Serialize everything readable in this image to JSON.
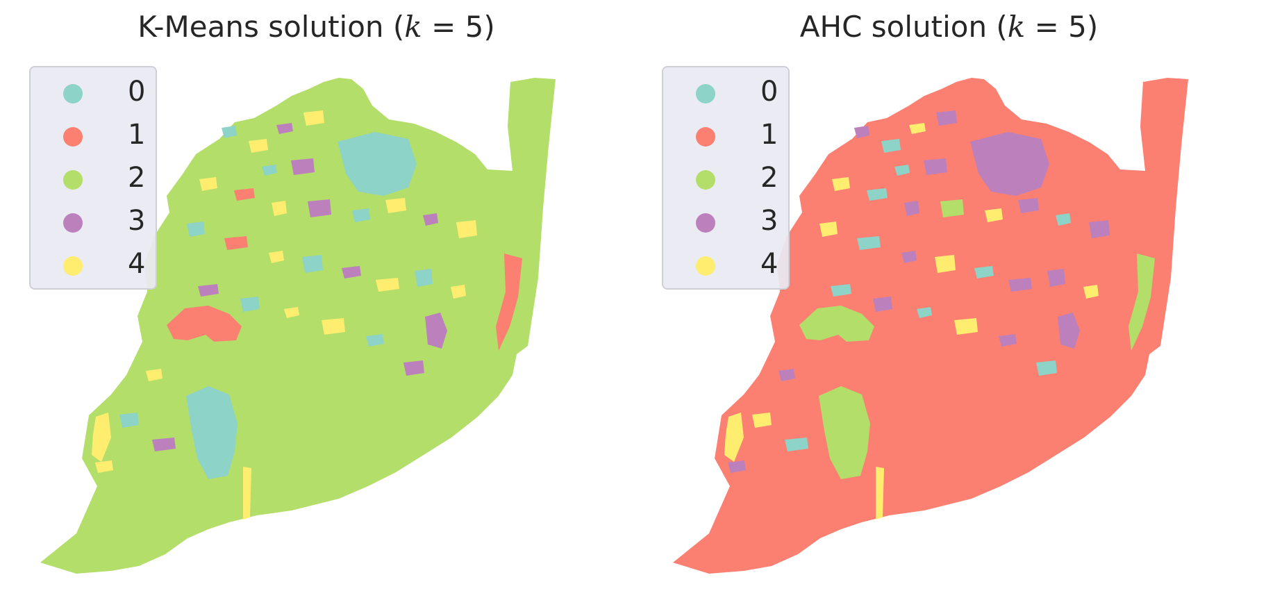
{
  "panels": [
    {
      "title_prefix": "K-Means solution (",
      "title_var": "k",
      "title_suffix": " = 5)",
      "base_color": "#b3de69",
      "patch_color_indices": [
        0,
        4,
        3,
        4,
        0,
        3,
        4,
        1,
        4,
        3,
        0,
        4,
        3,
        4,
        0,
        1,
        4,
        0,
        3,
        4,
        0,
        4,
        3,
        0,
        4,
        4,
        0,
        3,
        4,
        0,
        4,
        3
      ],
      "region_color_indices": [
        1,
        1,
        0,
        4,
        3,
        0,
        4
      ]
    },
    {
      "title_prefix": "AHC solution (",
      "title_var": "k",
      "title_suffix": " = 5)",
      "base_color": "#fb8072",
      "patch_color_indices": [
        3,
        0,
        4,
        3,
        0,
        3,
        4,
        0,
        3,
        2,
        4,
        3,
        0,
        3,
        4,
        0,
        3,
        4,
        0,
        3,
        3,
        4,
        0,
        3,
        0,
        4,
        3,
        0,
        3,
        4,
        3,
        0
      ],
      "region_color_indices": [
        2,
        2,
        2,
        4,
        3,
        3,
        4
      ]
    }
  ],
  "legend": {
    "items": [
      {
        "label": "0",
        "color": "#8dd3c7"
      },
      {
        "label": "1",
        "color": "#fb8072"
      },
      {
        "label": "2",
        "color": "#b3de69"
      },
      {
        "label": "3",
        "color": "#bc80bd"
      },
      {
        "label": "4",
        "color": "#ffed6f"
      }
    ]
  }
}
